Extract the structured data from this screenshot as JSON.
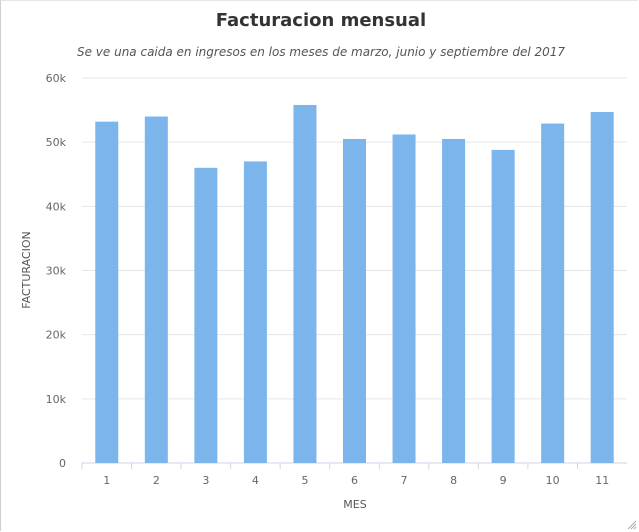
{
  "chart_data": {
    "type": "bar",
    "title": "Facturacion mensual",
    "subtitle": "Se ve una caida en ingresos en los meses de marzo, junio y septiembre del 2017",
    "xlabel": "MES",
    "ylabel": "FACTURACION",
    "categories": [
      "1",
      "2",
      "3",
      "4",
      "5",
      "6",
      "7",
      "8",
      "9",
      "10",
      "11"
    ],
    "values": [
      53200,
      54000,
      46000,
      47000,
      55800,
      50500,
      51200,
      50500,
      48800,
      52900,
      54700
    ],
    "ylim": [
      0,
      60000
    ],
    "yticks": [
      0,
      10000,
      20000,
      30000,
      40000,
      50000,
      60000
    ],
    "ytick_labels": [
      "0",
      "10k",
      "20k",
      "30k",
      "40k",
      "50k",
      "60k"
    ],
    "grid": true,
    "legend": false,
    "bar_color": "#7cb5ec"
  }
}
